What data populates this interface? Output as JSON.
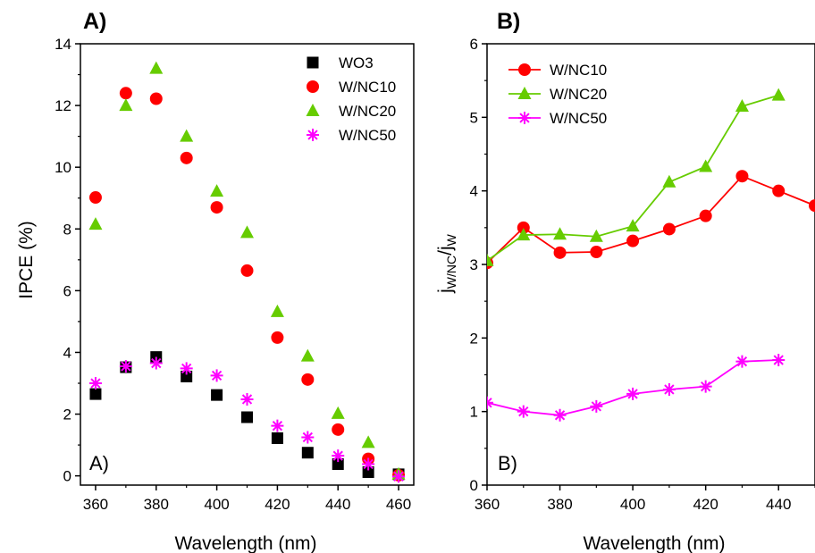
{
  "chart_data": [
    {
      "type": "scatter",
      "title": "A)",
      "inner_label": "A)",
      "xlabel": "Wavelength (nm)",
      "ylabel": "IPCE (%)",
      "xlim": [
        355,
        465
      ],
      "ylim": [
        -0.3,
        14
      ],
      "xticks": [
        "360",
        "380",
        "400",
        "420",
        "440",
        "460"
      ],
      "yticks": [
        "0",
        "2",
        "4",
        "6",
        "8",
        "10",
        "12",
        "14"
      ],
      "legend_position": "top-right",
      "x": [
        360,
        370,
        380,
        390,
        400,
        410,
        420,
        430,
        440,
        450,
        460
      ],
      "series": [
        {
          "name": "WO3",
          "marker": "square",
          "color": "#000000",
          "values": [
            2.65,
            3.52,
            3.85,
            3.22,
            2.62,
            1.9,
            1.22,
            0.75,
            0.38,
            0.12,
            0.05
          ]
        },
        {
          "name": "W/NC10",
          "marker": "circle",
          "color": "#ff0000",
          "values": [
            9.02,
            12.4,
            12.22,
            10.3,
            8.7,
            6.65,
            4.48,
            3.12,
            1.5,
            0.55,
            0.02
          ]
        },
        {
          "name": "W/NC20",
          "marker": "triangle",
          "color": "#66cc00",
          "values": [
            8.15,
            12.0,
            13.2,
            11.0,
            9.22,
            7.88,
            5.32,
            3.88,
            2.02,
            1.08,
            0.05
          ]
        },
        {
          "name": "W/NC50",
          "marker": "star",
          "color": "#ff00ff",
          "values": [
            3.0,
            3.55,
            3.65,
            3.48,
            3.25,
            2.48,
            1.62,
            1.25,
            0.65,
            0.38,
            -0.02
          ]
        }
      ]
    },
    {
      "type": "line",
      "title": "B)",
      "inner_label": "B)",
      "xlabel": "Wavelength (nm)",
      "ylabel_main": "j",
      "ylabel_sub1": "W/NC",
      "ylabel_mid": "/j",
      "ylabel_sub2": "W",
      "xlim": [
        360,
        450
      ],
      "ylim": [
        0,
        6
      ],
      "xticks": [
        "360",
        "380",
        "400",
        "420",
        "440"
      ],
      "yticks": [
        "0",
        "1",
        "2",
        "3",
        "4",
        "5",
        "6"
      ],
      "legend_position": "top-left",
      "series": [
        {
          "name": "W/NC10",
          "marker": "circle",
          "color": "#ff0000",
          "x": [
            360,
            370,
            380,
            390,
            400,
            410,
            420,
            430,
            440,
            450
          ],
          "values": [
            3.02,
            3.5,
            3.16,
            3.17,
            3.32,
            3.48,
            3.66,
            4.2,
            4.0,
            3.8
          ]
        },
        {
          "name": "W/NC20",
          "marker": "triangle",
          "color": "#66cc00",
          "x": [
            360,
            370,
            380,
            390,
            400,
            410,
            420,
            430,
            440
          ],
          "values": [
            3.05,
            3.4,
            3.41,
            3.38,
            3.52,
            4.12,
            4.33,
            5.15,
            5.3
          ]
        },
        {
          "name": "W/NC50",
          "marker": "star",
          "color": "#ff00ff",
          "x": [
            360,
            370,
            380,
            390,
            400,
            410,
            420,
            430,
            440
          ],
          "values": [
            1.12,
            1.0,
            0.95,
            1.07,
            1.24,
            1.3,
            1.34,
            1.68,
            1.7
          ]
        }
      ]
    }
  ]
}
